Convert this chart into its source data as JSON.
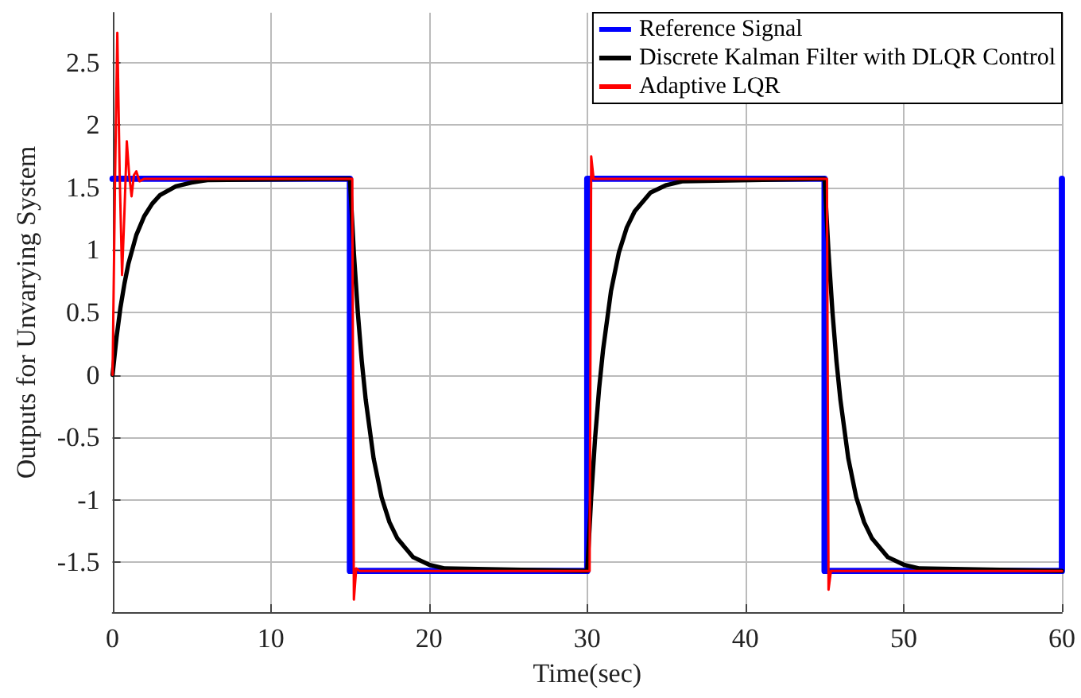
{
  "chart_data": {
    "type": "line",
    "xlabel": "Time(sec)",
    "ylabel": "Outputs for Unvarying System",
    "xlim": [
      0,
      60
    ],
    "xticks": [
      0,
      10,
      20,
      30,
      40,
      50,
      60
    ],
    "ylim": [
      -1.9,
      2.9
    ],
    "yticks": [
      -1.5,
      -1,
      -0.5,
      0,
      0.5,
      1,
      1.5,
      2,
      2.5
    ],
    "grid": true,
    "legend": "top right",
    "marker": "none",
    "line_style": "solid",
    "series": [
      {
        "name": "Reference Signal",
        "color": "#0000ff",
        "x": [
          0,
          15,
          15,
          30,
          30,
          45,
          45,
          60,
          60
        ],
        "values": [
          1.57,
          1.57,
          -1.57,
          -1.57,
          1.57,
          1.57,
          -1.57,
          -1.57,
          1.57
        ]
      },
      {
        "name": "Discrete Kalman Filter with DLQR Control",
        "color": "#000000",
        "x": [
          0,
          0.25,
          0.5,
          0.75,
          1,
          1.5,
          2,
          2.5,
          3,
          4,
          5,
          6,
          15,
          15.25,
          15.5,
          15.75,
          16,
          16.5,
          17,
          17.5,
          18,
          19,
          20,
          21,
          30,
          30.25,
          30.5,
          30.75,
          31,
          31.5,
          32,
          32.5,
          33,
          34,
          35,
          36,
          45,
          45.25,
          45.5,
          45.75,
          46,
          46.5,
          47,
          47.5,
          48,
          49,
          50,
          51,
          60
        ],
        "values": [
          0,
          0.3,
          0.54,
          0.73,
          0.89,
          1.12,
          1.27,
          1.37,
          1.44,
          1.51,
          1.54,
          1.56,
          1.57,
          0.98,
          0.5,
          0.11,
          -0.2,
          -0.67,
          -0.98,
          -1.18,
          -1.31,
          -1.46,
          -1.52,
          -1.55,
          -1.57,
          -0.98,
          -0.5,
          -0.11,
          0.2,
          0.67,
          0.98,
          1.18,
          1.31,
          1.46,
          1.52,
          1.55,
          1.57,
          0.98,
          0.5,
          0.11,
          -0.2,
          -0.67,
          -0.98,
          -1.18,
          -1.31,
          -1.46,
          -1.52,
          -1.55,
          -1.57
        ]
      },
      {
        "name": "Adaptive LQR",
        "color": "#ff0000",
        "x": [
          0,
          0.15,
          0.3,
          0.45,
          0.6,
          0.75,
          0.9,
          1.05,
          1.2,
          1.35,
          1.5,
          1.7,
          2,
          15.15,
          15.25,
          15.4,
          15.6,
          30.15,
          30.25,
          30.4,
          30.6,
          45.15,
          45.25,
          45.4,
          45.6,
          60
        ],
        "values": [
          0,
          1.5,
          2.74,
          1.6,
          0.8,
          1.3,
          1.87,
          1.6,
          1.43,
          1.6,
          1.63,
          1.55,
          1.57,
          1.57,
          -1.8,
          -1.55,
          -1.57,
          -1.57,
          1.75,
          1.57,
          1.57,
          1.57,
          -1.72,
          -1.57,
          -1.57,
          -1.57
        ]
      }
    ]
  }
}
